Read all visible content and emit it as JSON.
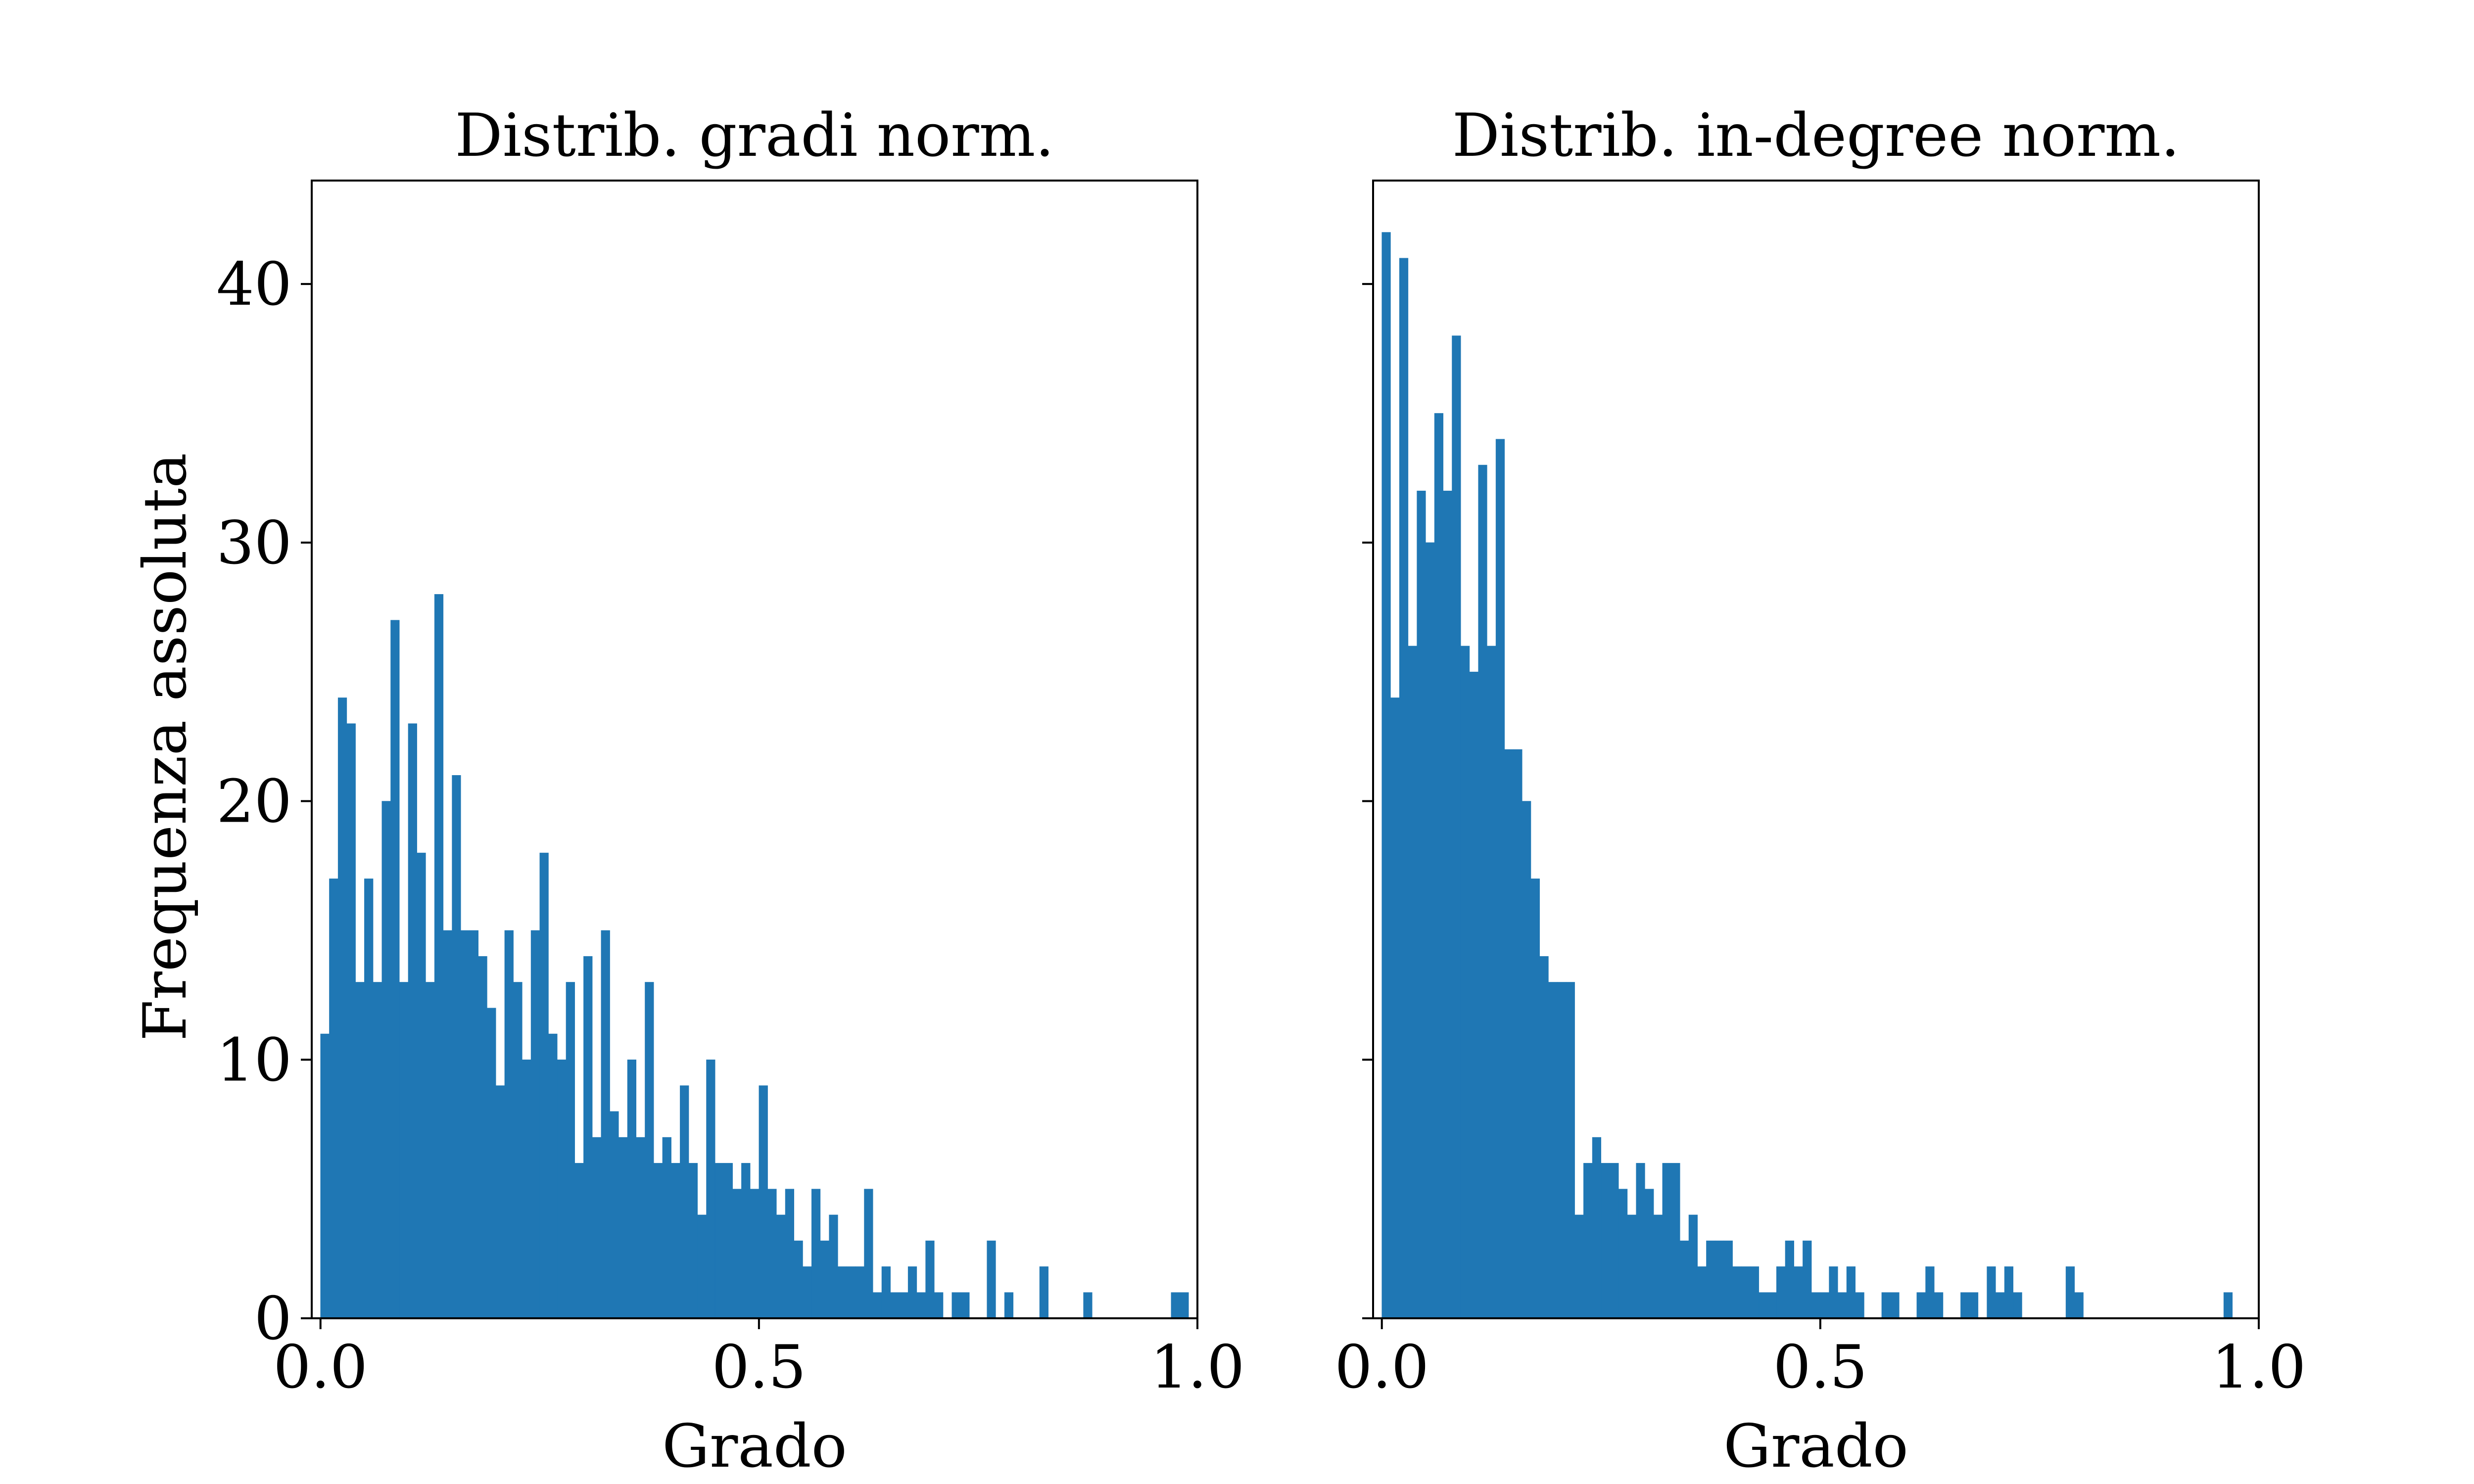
{
  "chart_data": [
    {
      "type": "bar",
      "title": "Distrib. gradi norm.",
      "xlabel": "Grado",
      "ylabel": "Frequenza assoluta",
      "xlim": [
        -0.01,
        1.0
      ],
      "ylim": [
        0,
        44
      ],
      "xticks": [
        "0.0",
        "0.5",
        "1.0"
      ],
      "yticks": [
        "0",
        "10",
        "20",
        "30",
        "40"
      ],
      "bin_width": 0.01,
      "color": "#1f77b4",
      "values": [
        11,
        17,
        24,
        23,
        13,
        17,
        13,
        20,
        27,
        13,
        23,
        18,
        13,
        28,
        15,
        21,
        15,
        15,
        14,
        12,
        9,
        15,
        13,
        10,
        15,
        18,
        11,
        10,
        13,
        6,
        14,
        7,
        15,
        8,
        7,
        10,
        7,
        13,
        6,
        7,
        6,
        9,
        6,
        4,
        10,
        6,
        6,
        5,
        6,
        5,
        9,
        5,
        4,
        5,
        3,
        2,
        5,
        3,
        4,
        2,
        2,
        2,
        5,
        1,
        2,
        1,
        1,
        2,
        1,
        3,
        1,
        0,
        1,
        1,
        0,
        0,
        3,
        0,
        1,
        0,
        0,
        0,
        2,
        0,
        0,
        0,
        0,
        1,
        0,
        0,
        0,
        0,
        0,
        0,
        0,
        0,
        0,
        1,
        1,
        0
      ]
    },
    {
      "type": "bar",
      "title": "Distrib. in-degree norm.",
      "xlabel": "Grado",
      "ylabel": "",
      "xlim": [
        -0.01,
        1.0
      ],
      "ylim": [
        0,
        44
      ],
      "xticks": [
        "0.0",
        "0.5",
        "1.0"
      ],
      "yticks": [
        "0",
        "10",
        "20",
        "30",
        "40"
      ],
      "bin_width": 0.01,
      "color": "#1f77b4",
      "values": [
        42,
        24,
        41,
        26,
        32,
        30,
        35,
        32,
        38,
        26,
        25,
        33,
        26,
        34,
        22,
        22,
        20,
        17,
        14,
        13,
        13,
        13,
        4,
        6,
        7,
        6,
        6,
        5,
        4,
        6,
        5,
        4,
        6,
        6,
        3,
        4,
        2,
        3,
        3,
        3,
        2,
        2,
        2,
        1,
        1,
        2,
        3,
        2,
        3,
        1,
        1,
        2,
        1,
        2,
        1,
        0,
        0,
        1,
        1,
        0,
        0,
        1,
        2,
        1,
        0,
        0,
        1,
        1,
        0,
        2,
        1,
        2,
        1,
        0,
        0,
        0,
        0,
        0,
        2,
        1,
        0,
        0,
        0,
        0,
        0,
        0,
        0,
        0,
        0,
        0,
        0,
        0,
        0,
        0,
        0,
        0,
        1,
        0,
        0,
        0
      ]
    }
  ]
}
